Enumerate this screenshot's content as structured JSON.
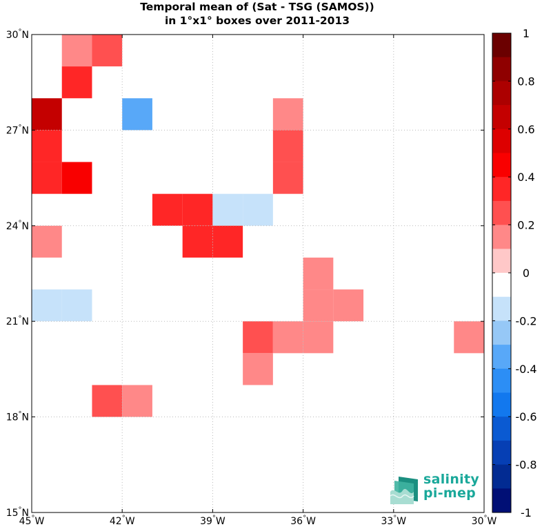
{
  "chart_data": {
    "type": "heatmap",
    "title": [
      "Temporal mean of (Sat - TSG (SAMOS))",
      "in 1°x1° boxes over 2011-2013"
    ],
    "lon_range": [
      -45,
      -30
    ],
    "lat_range": [
      15,
      30
    ],
    "x_tick_values": [
      -45,
      -42,
      -39,
      -36,
      -33,
      -30
    ],
    "x_tick_labels": [
      "45°W",
      "42°W",
      "39°W",
      "36°W",
      "33°W",
      "30°W"
    ],
    "y_tick_values": [
      15,
      18,
      21,
      24,
      27,
      30
    ],
    "y_tick_labels": [
      "15°N",
      "18°N",
      "21°N",
      "24°N",
      "27°N",
      "30°N"
    ],
    "grid": true,
    "colorbar": {
      "range": [
        -1,
        1
      ],
      "levels": 20,
      "tick_values": [
        1,
        0.8,
        0.6,
        0.4,
        0.2,
        0,
        -0.2,
        -0.4,
        -0.6,
        -0.8,
        -1
      ],
      "tick_labels": [
        "1",
        "0.8",
        "0.6",
        "0.4",
        "0.2",
        "0",
        "-0.2",
        "-0.4",
        "-0.6",
        "-0.8",
        "-1"
      ],
      "colors": [
        "#6b0000",
        "#8f0000",
        "#ac0000",
        "#c40000",
        "#dd0000",
        "#f90000",
        "#ff2626",
        "#ff5050",
        "#ff8888",
        "#ffc8c8",
        "#ffffff",
        "#c6e2fa",
        "#96c8f6",
        "#58a8f8",
        "#2c8ef5",
        "#1278ee",
        "#0a5ad2",
        "#063fb4",
        "#022b92",
        "#010f75"
      ]
    },
    "cells": [
      {
        "lon": -44,
        "lat": 29,
        "value": 0.15
      },
      {
        "lon": -43,
        "lat": 29,
        "value": 0.25
      },
      {
        "lon": -44,
        "lat": 28,
        "value": 0.35
      },
      {
        "lon": -45,
        "lat": 27,
        "value": 0.65
      },
      {
        "lon": -42,
        "lat": 27,
        "value": -0.35
      },
      {
        "lon": -37,
        "lat": 27,
        "value": 0.15
      },
      {
        "lon": -45,
        "lat": 26,
        "value": 0.35
      },
      {
        "lon": -37,
        "lat": 26,
        "value": 0.25
      },
      {
        "lon": -45,
        "lat": 25,
        "value": 0.35
      },
      {
        "lon": -44,
        "lat": 25,
        "value": 0.45
      },
      {
        "lon": -37,
        "lat": 25,
        "value": 0.25
      },
      {
        "lon": -41,
        "lat": 24,
        "value": 0.35
      },
      {
        "lon": -40,
        "lat": 24,
        "value": 0.35
      },
      {
        "lon": -39,
        "lat": 24,
        "value": -0.15
      },
      {
        "lon": -38,
        "lat": 24,
        "value": -0.15
      },
      {
        "lon": -45,
        "lat": 23,
        "value": 0.15
      },
      {
        "lon": -40,
        "lat": 23,
        "value": 0.35
      },
      {
        "lon": -39,
        "lat": 23,
        "value": 0.35
      },
      {
        "lon": -36,
        "lat": 22,
        "value": 0.15
      },
      {
        "lon": -45,
        "lat": 21,
        "value": -0.15
      },
      {
        "lon": -44,
        "lat": 21,
        "value": -0.15
      },
      {
        "lon": -36,
        "lat": 21,
        "value": 0.15
      },
      {
        "lon": -35,
        "lat": 21,
        "value": 0.15
      },
      {
        "lon": -38,
        "lat": 20,
        "value": 0.25
      },
      {
        "lon": -37,
        "lat": 20,
        "value": 0.15
      },
      {
        "lon": -36,
        "lat": 20,
        "value": 0.15
      },
      {
        "lon": -31,
        "lat": 20,
        "value": 0.15
      },
      {
        "lon": -38,
        "lat": 19,
        "value": 0.15
      },
      {
        "lon": -43,
        "lat": 18,
        "value": 0.25
      },
      {
        "lon": -42,
        "lat": 18,
        "value": 0.15
      }
    ]
  },
  "logo": {
    "line1": "salinity",
    "line2": "pi-mep"
  }
}
